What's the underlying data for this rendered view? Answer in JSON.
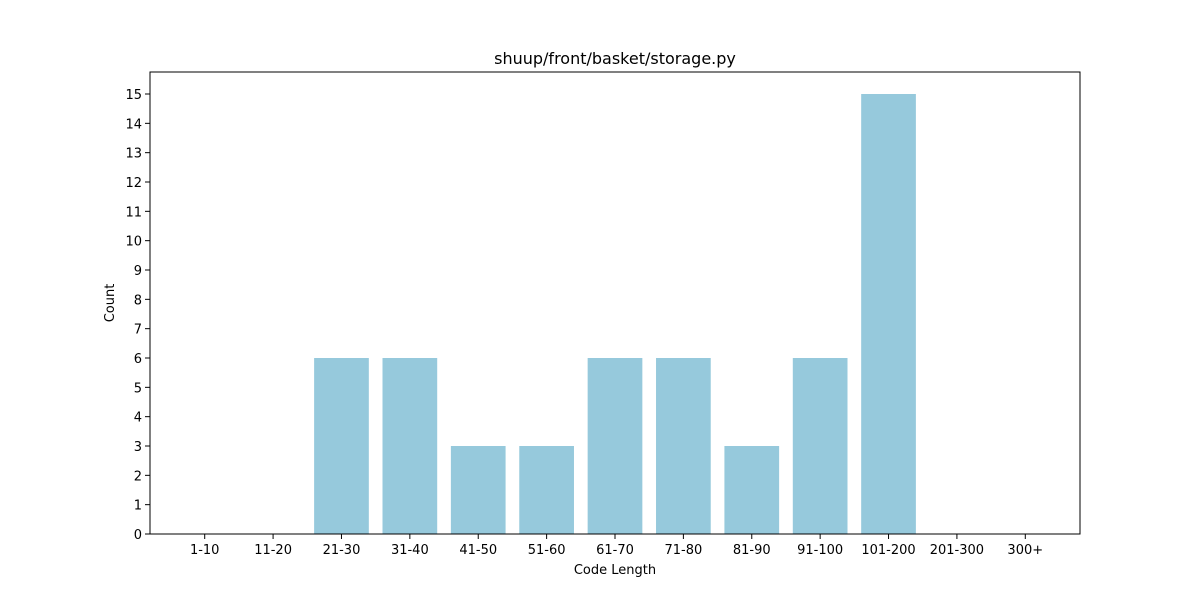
{
  "chart_data": {
    "type": "bar",
    "title": "shuup/front/basket/storage.py",
    "xlabel": "Code Length",
    "ylabel": "Count",
    "categories": [
      "1-10",
      "11-20",
      "21-30",
      "31-40",
      "41-50",
      "51-60",
      "61-70",
      "71-80",
      "81-90",
      "91-100",
      "101-200",
      "201-300",
      "300+"
    ],
    "values": [
      0,
      0,
      6,
      6,
      3,
      3,
      6,
      6,
      3,
      6,
      15,
      0,
      0
    ],
    "ylim": [
      0,
      15.75
    ],
    "yticks": [
      0,
      1,
      2,
      3,
      4,
      5,
      6,
      7,
      8,
      9,
      10,
      11,
      12,
      13,
      14,
      15
    ],
    "bar_color": "#96c9dc",
    "grid": false,
    "legend": false
  }
}
